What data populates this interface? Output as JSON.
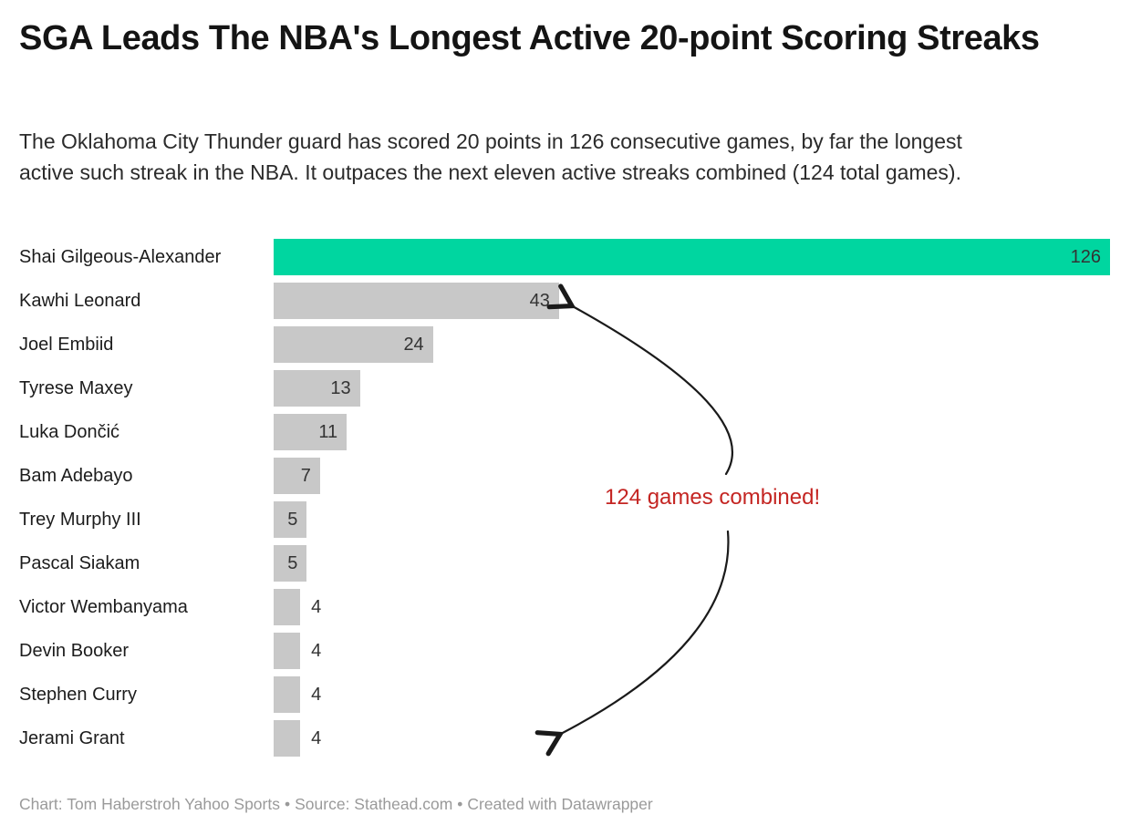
{
  "header": {
    "title": "SGA Leads The NBA's Longest Active 20-point Scoring Streaks",
    "subtitle": "The Oklahoma City Thunder guard has scored 20 points in 126 consecutive games, by far the longest active such streak in the NBA. It outpaces the next eleven active streaks combined (124 total games)."
  },
  "chart_data": {
    "type": "bar",
    "orientation": "horizontal",
    "categories": [
      "Shai Gilgeous-Alexander",
      "Kawhi Leonard",
      "Joel Embiid",
      "Tyrese Maxey",
      "Luka Dončić",
      "Bam Adebayo",
      "Trey Murphy III",
      "Pascal Siakam",
      "Victor Wembanyama",
      "Devin Booker",
      "Stephen Curry",
      "Jerami Grant"
    ],
    "values": [
      126,
      43,
      24,
      13,
      11,
      7,
      5,
      5,
      4,
      4,
      4,
      4
    ],
    "title": "SGA Leads The NBA's Longest Active 20-point Scoring Streaks",
    "xlabel": "",
    "ylabel": "",
    "xlim": [
      0,
      126
    ],
    "grid": false,
    "value_labels": true,
    "highlight_index": 0,
    "colors": {
      "highlight_bar": "#00d6a0",
      "default_bar": "#c8c8c8",
      "value_label": "#333333",
      "category_label": "#1c1c1c",
      "annotation_red": "#c42522",
      "arrow_black": "#1a1a1a"
    },
    "annotation": {
      "text": "124 games combined!",
      "points_to": [
        "Kawhi Leonard bar",
        "Jerami Grant bar"
      ]
    }
  },
  "footer": {
    "chart_credit": "Chart: Tom Haberstroh Yahoo Sports",
    "source": "Source: Stathead.com",
    "created_with": "Created with Datawrapper",
    "separator": "•"
  }
}
